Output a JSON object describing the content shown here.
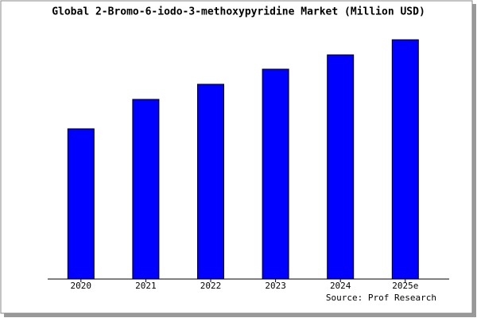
{
  "chart_data": {
    "type": "bar",
    "title": "Global 2-Bromo-6-iodo-3-methoxypyridine Market (Million USD)",
    "categories": [
      "2020",
      "2021",
      "2022",
      "2023",
      "2024",
      "2025e"
    ],
    "values": [
      18.9,
      22.6,
      24.5,
      26.4,
      28.2,
      30.1
    ],
    "color": "#0000ff",
    "ylim": [
      0,
      30.6
    ],
    "source": "Source: Prof Research"
  }
}
